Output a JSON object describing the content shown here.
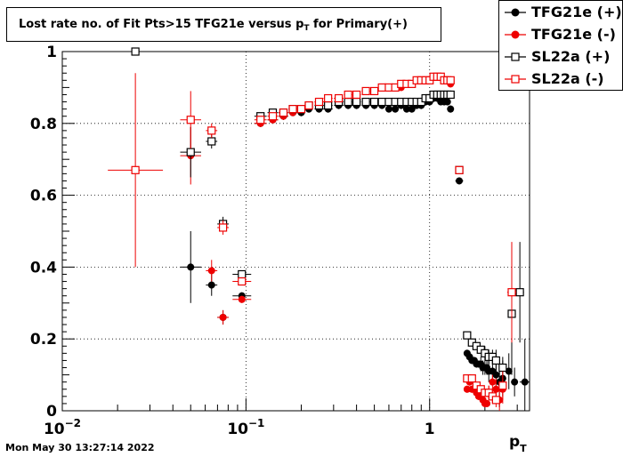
{
  "title": {
    "prefix": "Lost rate no. of Fit Pts>15 TFG21e versus p",
    "sub": "T",
    "suffix": " for Primary(+)"
  },
  "timestamp": "Mon May 30 13:27:14 2022",
  "xaxis": {
    "label": "p",
    "label_sub": "T"
  },
  "chart_data": {
    "type": "scatter",
    "x_scale": "log",
    "xlim": [
      0.01,
      3.5
    ],
    "ylim": [
      0,
      1.0
    ],
    "grid": true,
    "legend_position": "top-right",
    "x_ticks": [
      {
        "value": 0.01,
        "label": "10",
        "exp": "−2"
      },
      {
        "value": 0.1,
        "label": "10",
        "exp": "−1"
      },
      {
        "value": 1,
        "label": "1",
        "exp": ""
      }
    ],
    "y_ticks": [
      {
        "value": 0,
        "label": "0"
      },
      {
        "value": 0.2,
        "label": "0.2"
      },
      {
        "value": 0.4,
        "label": "0.4"
      },
      {
        "value": 0.6,
        "label": "0.6"
      },
      {
        "value": 0.8,
        "label": "0.8"
      },
      {
        "value": 1.0,
        "label": "1"
      }
    ],
    "series": [
      {
        "name": "TFG21e (+)",
        "color": "#000000",
        "marker": "filled-circle",
        "x": [
          0.05,
          0.065,
          0.075,
          0.095,
          0.12,
          0.14,
          0.16,
          0.18,
          0.2,
          0.22,
          0.25,
          0.28,
          0.32,
          0.36,
          0.4,
          0.45,
          0.5,
          0.55,
          0.6,
          0.65,
          0.7,
          0.75,
          0.8,
          0.85,
          0.9,
          0.95,
          1.0,
          1.05,
          1.1,
          1.15,
          1.2,
          1.25,
          1.3,
          1.45,
          1.6,
          1.65,
          1.7,
          1.75,
          1.8,
          1.85,
          1.9,
          1.95,
          2.0,
          2.05,
          2.1,
          2.2,
          2.3,
          2.4,
          2.5,
          2.7,
          2.9,
          3.3
        ],
        "y": [
          0.4,
          0.35,
          0.26,
          0.32,
          0.8,
          0.81,
          0.82,
          0.83,
          0.83,
          0.84,
          0.84,
          0.84,
          0.85,
          0.85,
          0.85,
          0.85,
          0.85,
          0.85,
          0.84,
          0.84,
          0.85,
          0.84,
          0.84,
          0.85,
          0.85,
          0.86,
          0.86,
          0.87,
          0.87,
          0.86,
          0.86,
          0.86,
          0.84,
          0.64,
          0.16,
          0.15,
          0.14,
          0.14,
          0.13,
          0.13,
          0.13,
          0.12,
          0.12,
          0.12,
          0.11,
          0.11,
          0.1,
          0.08,
          0.09,
          0.11,
          0.08,
          0.08
        ],
        "err": [
          0.1,
          0.03,
          0.02,
          0.01,
          0.01,
          0.01,
          0.01,
          0.01,
          0.01,
          0.01,
          0.01,
          0.01,
          0.01,
          0.01,
          0.01,
          0.01,
          0.01,
          0.01,
          0.01,
          0.01,
          0.01,
          0.01,
          0.01,
          0.01,
          0.01,
          0.01,
          0.01,
          0.01,
          0.01,
          0.01,
          0.01,
          0.01,
          0.01,
          0.01,
          0.01,
          0.01,
          0.01,
          0.01,
          0.01,
          0.01,
          0.02,
          0.02,
          0.02,
          0.02,
          0.03,
          0.03,
          0.04,
          0.07,
          0.05,
          0.05,
          0.04,
          0.12
        ]
      },
      {
        "name": "TFG21e (-)",
        "color": "#ee0000",
        "marker": "filled-circle",
        "x": [
          0.05,
          0.065,
          0.075,
          0.095,
          0.12,
          0.14,
          0.16,
          0.18,
          0.2,
          0.22,
          0.25,
          0.28,
          0.32,
          0.36,
          0.4,
          0.45,
          0.5,
          0.55,
          0.6,
          0.65,
          0.7,
          0.75,
          0.8,
          0.85,
          0.9,
          0.95,
          1.0,
          1.05,
          1.1,
          1.15,
          1.2,
          1.25,
          1.3,
          1.45,
          1.6,
          1.65,
          1.7,
          1.75,
          1.8,
          1.85,
          1.9,
          1.95,
          2.0,
          2.05,
          2.1,
          2.2,
          2.3,
          2.4,
          2.5
        ],
        "y": [
          0.71,
          0.39,
          0.26,
          0.31,
          0.8,
          0.81,
          0.82,
          0.83,
          0.84,
          0.85,
          0.86,
          0.86,
          0.87,
          0.88,
          0.88,
          0.89,
          0.89,
          0.9,
          0.9,
          0.9,
          0.9,
          0.91,
          0.91,
          0.92,
          0.92,
          0.92,
          0.92,
          0.93,
          0.93,
          0.93,
          0.92,
          0.92,
          0.91,
          0.67,
          0.06,
          0.08,
          0.06,
          0.06,
          0.05,
          0.04,
          0.04,
          0.03,
          0.02,
          0.02,
          0.05,
          0.08,
          0.06,
          0.03,
          0.06
        ],
        "err": [
          0.08,
          0.03,
          0.02,
          0.01,
          0.01,
          0.01,
          0.01,
          0.01,
          0.01,
          0.01,
          0.01,
          0.01,
          0.01,
          0.01,
          0.01,
          0.01,
          0.01,
          0.01,
          0.01,
          0.01,
          0.01,
          0.01,
          0.01,
          0.01,
          0.01,
          0.01,
          0.01,
          0.01,
          0.01,
          0.01,
          0.01,
          0.01,
          0.01,
          0.01,
          0.01,
          0.01,
          0.01,
          0.01,
          0.01,
          0.01,
          0.01,
          0.01,
          0.01,
          0.01,
          0.02,
          0.02,
          0.03,
          0.03,
          0.04
        ]
      },
      {
        "name": "SL22a (+)",
        "color": "#000000",
        "marker": "open-square",
        "x": [
          0.025,
          0.05,
          0.065,
          0.075,
          0.095,
          0.12,
          0.14,
          0.16,
          0.18,
          0.2,
          0.22,
          0.25,
          0.28,
          0.32,
          0.36,
          0.4,
          0.45,
          0.5,
          0.55,
          0.6,
          0.65,
          0.7,
          0.75,
          0.8,
          0.85,
          0.9,
          0.95,
          1.0,
          1.05,
          1.1,
          1.15,
          1.2,
          1.25,
          1.3,
          1.45,
          1.6,
          1.7,
          1.8,
          1.9,
          2.0,
          2.1,
          2.2,
          2.3,
          2.5,
          2.8,
          3.1
        ],
        "y": [
          1.0,
          0.72,
          0.75,
          0.52,
          0.38,
          0.82,
          0.83,
          0.83,
          0.84,
          0.84,
          0.85,
          0.85,
          0.85,
          0.86,
          0.86,
          0.86,
          0.86,
          0.86,
          0.86,
          0.86,
          0.86,
          0.86,
          0.86,
          0.86,
          0.86,
          0.86,
          0.87,
          0.87,
          0.88,
          0.88,
          0.88,
          0.88,
          0.88,
          0.88,
          0.67,
          0.21,
          0.19,
          0.18,
          0.17,
          0.16,
          0.15,
          0.15,
          0.14,
          0.12,
          0.27,
          0.33
        ],
        "err": [
          0.0,
          0.07,
          0.02,
          0.02,
          0.01,
          0.01,
          0.01,
          0.01,
          0.01,
          0.01,
          0.01,
          0.01,
          0.01,
          0.01,
          0.01,
          0.01,
          0.01,
          0.01,
          0.01,
          0.01,
          0.01,
          0.01,
          0.01,
          0.01,
          0.01,
          0.01,
          0.01,
          0.01,
          0.01,
          0.01,
          0.01,
          0.01,
          0.01,
          0.01,
          0.01,
          0.01,
          0.01,
          0.01,
          0.01,
          0.02,
          0.02,
          0.02,
          0.03,
          0.03,
          0.17,
          0.14
        ]
      },
      {
        "name": "SL22a (-)",
        "color": "#ee0000",
        "marker": "open-square",
        "x": [
          0.025,
          0.05,
          0.065,
          0.075,
          0.095,
          0.12,
          0.14,
          0.16,
          0.18,
          0.2,
          0.22,
          0.25,
          0.28,
          0.32,
          0.36,
          0.4,
          0.45,
          0.5,
          0.55,
          0.6,
          0.65,
          0.7,
          0.75,
          0.8,
          0.85,
          0.9,
          0.95,
          1.0,
          1.05,
          1.1,
          1.15,
          1.2,
          1.25,
          1.3,
          1.45,
          1.6,
          1.7,
          1.8,
          1.9,
          2.0,
          2.1,
          2.2,
          2.3,
          2.5,
          2.8
        ],
        "y": [
          0.67,
          0.81,
          0.78,
          0.51,
          0.36,
          0.81,
          0.82,
          0.83,
          0.84,
          0.84,
          0.85,
          0.86,
          0.87,
          0.87,
          0.88,
          0.88,
          0.89,
          0.89,
          0.9,
          0.9,
          0.9,
          0.91,
          0.91,
          0.91,
          0.92,
          0.92,
          0.92,
          0.92,
          0.93,
          0.93,
          0.93,
          0.92,
          0.92,
          0.92,
          0.67,
          0.09,
          0.09,
          0.07,
          0.06,
          0.05,
          0.05,
          0.04,
          0.03,
          0.07,
          0.33
        ],
        "err": [
          0.27,
          0.08,
          0.02,
          0.02,
          0.01,
          0.01,
          0.01,
          0.01,
          0.01,
          0.01,
          0.01,
          0.01,
          0.01,
          0.01,
          0.01,
          0.01,
          0.01,
          0.01,
          0.01,
          0.01,
          0.01,
          0.01,
          0.01,
          0.01,
          0.01,
          0.01,
          0.01,
          0.01,
          0.01,
          0.01,
          0.01,
          0.01,
          0.01,
          0.01,
          0.01,
          0.01,
          0.01,
          0.01,
          0.01,
          0.01,
          0.02,
          0.02,
          0.02,
          0.04,
          0.14
        ]
      }
    ]
  }
}
